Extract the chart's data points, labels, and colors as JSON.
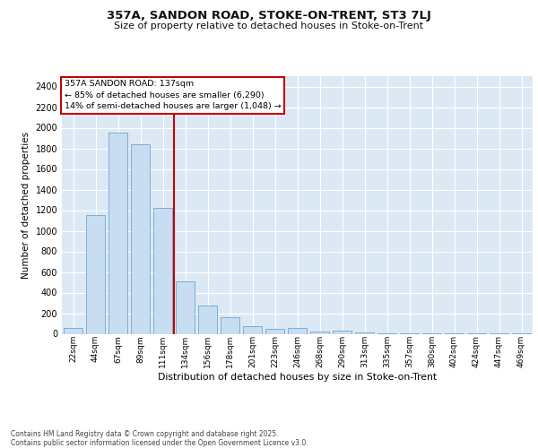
{
  "title1": "357A, SANDON ROAD, STOKE-ON-TRENT, ST3 7LJ",
  "title2": "Size of property relative to detached houses in Stoke-on-Trent",
  "xlabel": "Distribution of detached houses by size in Stoke-on-Trent",
  "ylabel": "Number of detached properties",
  "categories": [
    "22sqm",
    "44sqm",
    "67sqm",
    "89sqm",
    "111sqm",
    "134sqm",
    "156sqm",
    "178sqm",
    "201sqm",
    "223sqm",
    "246sqm",
    "268sqm",
    "290sqm",
    "313sqm",
    "335sqm",
    "357sqm",
    "380sqm",
    "402sqm",
    "424sqm",
    "447sqm",
    "469sqm"
  ],
  "values": [
    55,
    1150,
    1950,
    1840,
    1220,
    510,
    270,
    160,
    75,
    50,
    55,
    25,
    30,
    10,
    5,
    5,
    3,
    2,
    1,
    1,
    1
  ],
  "bar_color": "#c9ddf2",
  "bar_edge_color": "#7aafd4",
  "vline_color": "#cc0000",
  "vline_x": 4.5,
  "annotation_text": "357A SANDON ROAD: 137sqm\n← 85% of detached houses are smaller (6,290)\n14% of semi-detached houses are larger (1,048) →",
  "annotation_box_color": "#ffffff",
  "annotation_box_edge_color": "#cc0000",
  "ylim_max": 2500,
  "yticks": [
    0,
    200,
    400,
    600,
    800,
    1000,
    1200,
    1400,
    1600,
    1800,
    2000,
    2200,
    2400
  ],
  "grid_color": "#ffffff",
  "bg_color": "#dce9f5",
  "fig_bg_color": "#ffffff",
  "footer1": "Contains HM Land Registry data © Crown copyright and database right 2025.",
  "footer2": "Contains public sector information licensed under the Open Government Licence v3.0."
}
